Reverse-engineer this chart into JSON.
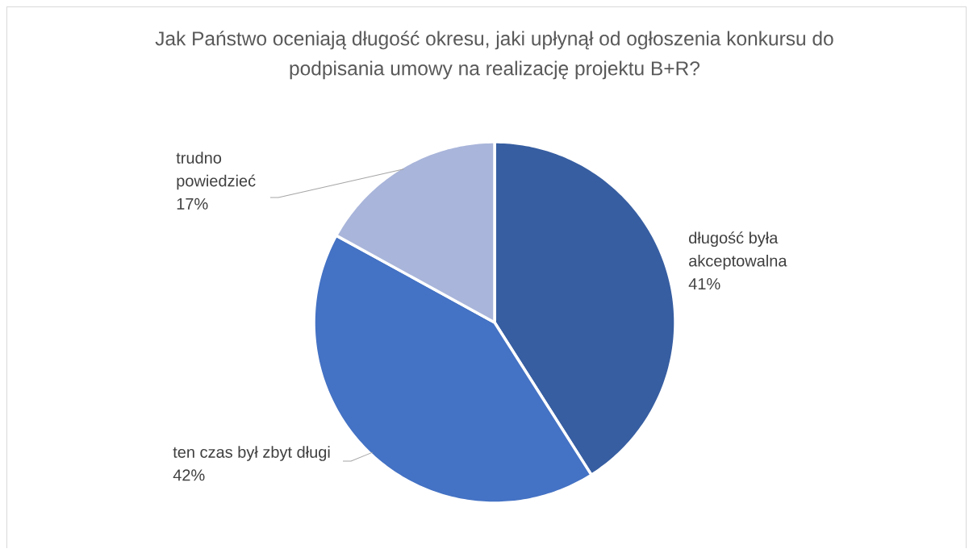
{
  "chart_data": {
    "type": "pie",
    "title": "Jak Państwo oceniają długość okresu, jaki upłynął od ogłoszenia konkursu do podpisania umowy na realizację projektu B+R?",
    "categories": [
      "długość była akceptowalna",
      "ten czas był zbyt długi",
      "trudno powiedzieć"
    ],
    "values": [
      41,
      42,
      17
    ],
    "value_labels": [
      "41%",
      "42%",
      "17%"
    ],
    "colors": [
      "#375ea1",
      "#4472c4",
      "#a9b5da"
    ]
  }
}
